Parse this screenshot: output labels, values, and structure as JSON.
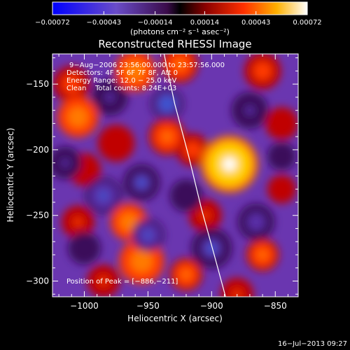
{
  "chart_data": {
    "type": "heatmap",
    "title": "Reconstructed RHESSI Image",
    "xlabel": "Heliocentric X (arcsec)",
    "ylabel": "Heliocentric Y (arcsec)",
    "xlim": [
      -1025,
      -832
    ],
    "ylim": [
      -312,
      -127
    ],
    "x_ticks": [
      -1000,
      -950,
      -900,
      -850
    ],
    "y_ticks": [
      -150,
      -200,
      -250,
      -300
    ],
    "x_tick_labels": [
      "−1000",
      "−950",
      "−900",
      "−850"
    ],
    "y_tick_labels": [
      "−150",
      "−200",
      "−250",
      "−300"
    ],
    "colorbar": {
      "range": [
        -0.00072,
        0.00072
      ],
      "ticks": [
        -0.00072,
        -0.00043,
        -0.00014,
        0.00014,
        0.00043,
        0.00072
      ],
      "tick_labels": [
        "−0.00072",
        "−0.00043",
        "−0.00014",
        "0.00014",
        "0.00043",
        "0.00072"
      ],
      "unit_label": "(photons cm⁻² s⁻¹ asec⁻²)"
    },
    "annotations": [
      "9−Aug−2006 23:56:00.000 to 23:57:56.000",
      "Detectors: 4F 5F 6F 7F 8F, Att 0",
      "Energy Range: 12.0 − 25.0 keV",
      "Clean    Total counts: 8.24E+03"
    ],
    "peak_label": "Position of Peak = [−886,−211]",
    "peak": [
      -886,
      -211
    ],
    "blobs": [
      [
        -886,
        -211,
        14,
        0.00072
      ],
      [
        -1005,
        -175,
        10,
        0.00045
      ],
      [
        -1010,
        -150,
        9,
        0.0003
      ],
      [
        -960,
        -140,
        10,
        0.0004
      ],
      [
        -925,
        -135,
        9,
        0.00035
      ],
      [
        -935,
        -190,
        9,
        0.00038
      ],
      [
        -915,
        -200,
        8,
        0.0003
      ],
      [
        -975,
        -195,
        9,
        0.0002
      ],
      [
        -955,
        -285,
        11,
        0.00045
      ],
      [
        -920,
        -295,
        8,
        0.00035
      ],
      [
        -965,
        -255,
        9,
        0.0004
      ],
      [
        -1005,
        -255,
        8,
        0.00022
      ],
      [
        -1000,
        -215,
        8,
        0.0002
      ],
      [
        -905,
        -250,
        8,
        0.00025
      ],
      [
        -860,
        -140,
        9,
        0.00028
      ],
      [
        -845,
        -180,
        8,
        0.0002
      ],
      [
        -860,
        -280,
        8,
        0.00038
      ],
      [
        -845,
        -230,
        7,
        0.00018
      ],
      [
        -985,
        -300,
        8,
        0.00025
      ],
      [
        -880,
        -310,
        8,
        0.00025
      ],
      [
        -955,
        -225,
        9,
        -0.00045
      ],
      [
        -985,
        -235,
        9,
        -0.0005
      ],
      [
        -935,
        -165,
        8,
        -0.00052
      ],
      [
        -980,
        -160,
        9,
        -0.00035
      ],
      [
        -1015,
        -210,
        8,
        -0.00035
      ],
      [
        -900,
        -275,
        10,
        -0.00045
      ],
      [
        -950,
        -265,
        8,
        -0.0005
      ],
      [
        -870,
        -170,
        9,
        -0.00035
      ],
      [
        -865,
        -255,
        9,
        -0.0004
      ],
      [
        -1000,
        -275,
        8,
        -0.0003
      ],
      [
        -845,
        -205,
        7,
        -0.0003
      ],
      [
        -920,
        -235,
        8,
        -0.00028
      ]
    ],
    "limb_curve": [
      [
        -938,
        -124
      ],
      [
        -929,
        -165
      ],
      [
        -918,
        -205
      ],
      [
        -908,
        -245
      ],
      [
        -898,
        -280
      ],
      [
        -889,
        -312
      ]
    ]
  },
  "timestamp": "16−Jul−2013 09:27"
}
